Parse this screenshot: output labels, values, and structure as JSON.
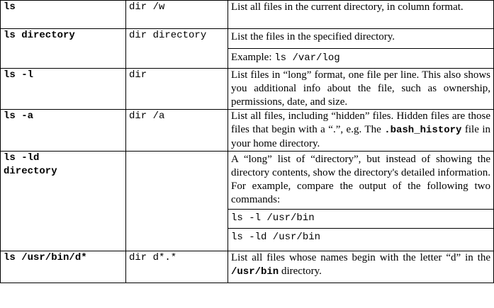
{
  "rows": [
    {
      "unix": "ls",
      "dos": "dir /w",
      "desc": "List all files in the current directory, in column format."
    },
    {
      "unix": "ls directory",
      "dos": "dir directory",
      "desc": "List the files in the specified directory.",
      "example_prefix": "Example: ",
      "example_code": "ls /var/log"
    },
    {
      "unix": "ls -l",
      "dos": "dir",
      "desc": "List files in “long” format, one file per line.  This also shows you additional info about the file, such as ownership, permissions, date, and size."
    },
    {
      "unix": "ls -a",
      "dos": "dir /a",
      "desc_part1": "List all files, including “hidden” files.  Hidden files are those files that begin with a “.”, e.g. The ",
      "desc_code": ".bash_history",
      "desc_part2": " file in your home directory."
    },
    {
      "unix_line1": "ls -ld",
      "unix_line2": "directory",
      "dos": "",
      "desc": "A “long” list of “directory”, but instead of showing the directory contents, show the directory's detailed information.  For example, compare the output of the following two commands:",
      "cmd1": "ls -l /usr/bin",
      "cmd2": "ls -ld /usr/bin"
    },
    {
      "unix": "ls /usr/bin/d*",
      "dos": "dir d*.*",
      "desc_part1": "List all files whose names begin with the letter “d” in the ",
      "desc_code": "/usr/bin",
      "desc_part2": " directory."
    }
  ]
}
